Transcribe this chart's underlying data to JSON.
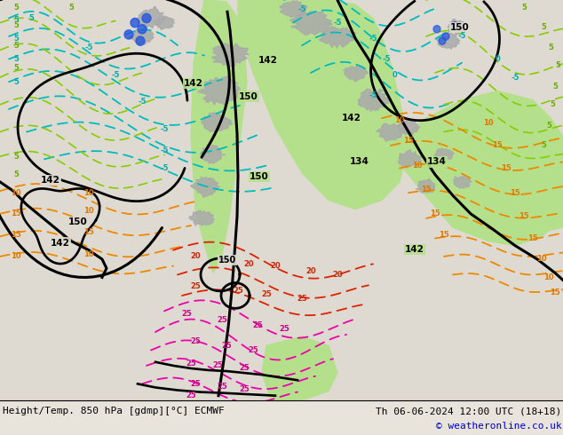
{
  "title_left": "Height/Temp. 850 hPa [gdmp][°C] ECMWF",
  "title_right": "Th 06-06-2024 12:00 UTC (18+18)",
  "copyright": "© weatheronline.co.uk",
  "bg_color": "#e8e4dc",
  "map_light": "#dedad2",
  "green_fill": "#b4e08c",
  "gray_fill": "#a8a8a8",
  "figsize": [
    6.34,
    4.9
  ],
  "dpi": 100,
  "title_fontsize": 8.0,
  "copyright_fontsize": 8.0,
  "copyright_color": "#0000cc",
  "black_lw": 2.2,
  "temp_lw": 1.3
}
